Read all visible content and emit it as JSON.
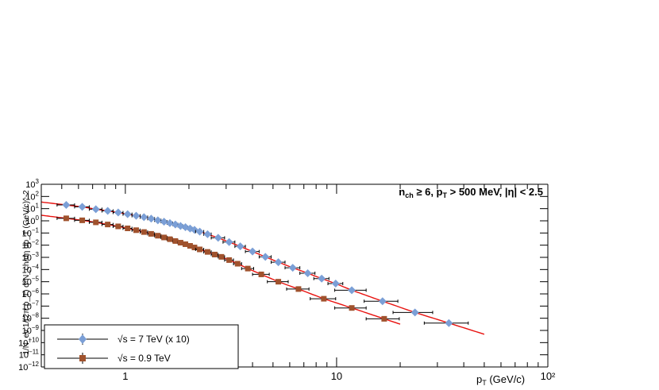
{
  "chart_data": {
    "type": "scatter",
    "title": "",
    "annotation_main": "n",
    "annotation_sub": "ch",
    "annotation_rest1": " ≥ 6, p",
    "annotation_sub2": "T",
    "annotation_rest2": " > 500 MeV, |η| < 2.5",
    "xlabel_main": "p",
    "xlabel_sub": "T",
    "xlabel_rest": "  (GeV/c)",
    "ylabel": "1/N_ev 1/(2π p_T) d²N_ch/dη dp_T (GeV/c)^-2",
    "x_scale": "log",
    "y_scale": "log",
    "xlim": [
      0.4,
      100
    ],
    "ylim": [
      1e-12,
      1000
    ],
    "x_tick_labels": [
      {
        "value": 1,
        "label": "1"
      },
      {
        "value": 10,
        "label": "10"
      },
      {
        "value": 100,
        "label": "10²"
      }
    ],
    "y_tick_exponents": [
      3,
      2,
      1,
      0,
      -1,
      -2,
      -3,
      -4,
      -5,
      -6,
      -7,
      -8,
      -9,
      -10,
      -11,
      -12
    ],
    "y_tick_base": "10",
    "legend_position": "bottom-left",
    "fit_color": "#e8120f",
    "series": [
      {
        "name": "√s = 7 TeV (x 10)",
        "marker": "diamond",
        "color": "#7b9fd6",
        "x": [
          0.525,
          0.625,
          0.725,
          0.825,
          0.925,
          1.025,
          1.125,
          1.225,
          1.325,
          1.425,
          1.525,
          1.625,
          1.725,
          1.825,
          1.925,
          2.025,
          2.125,
          2.25,
          2.45,
          2.75,
          3.1,
          3.5,
          4.0,
          4.6,
          5.3,
          6.2,
          7.3,
          8.5,
          9.9,
          11.8,
          16.5,
          23.5,
          34.0
        ],
        "y": [
          20,
          14,
          9,
          6.5,
          4.8,
          3.5,
          2.6,
          2.0,
          1.5,
          1.1,
          0.85,
          0.65,
          0.5,
          0.38,
          0.3,
          0.23,
          0.18,
          0.13,
          0.08,
          0.04,
          0.018,
          0.008,
          0.003,
          0.0011,
          0.0004,
          0.00014,
          5e-05,
          1.8e-05,
          7e-06,
          2e-06,
          2.5e-07,
          3e-08,
          4e-09
        ],
        "xerr": [
          0.05,
          0.05,
          0.05,
          0.05,
          0.05,
          0.05,
          0.05,
          0.05,
          0.05,
          0.05,
          0.05,
          0.05,
          0.05,
          0.05,
          0.05,
          0.05,
          0.05,
          0.1,
          0.1,
          0.2,
          0.2,
          0.2,
          0.3,
          0.3,
          0.4,
          0.5,
          0.6,
          0.7,
          0.8,
          2.0,
          3.0,
          5.0,
          8.0
        ]
      },
      {
        "name": "√s = 0.9 TeV",
        "marker": "square",
        "color": "#a0522d",
        "x": [
          0.525,
          0.625,
          0.725,
          0.825,
          0.925,
          1.025,
          1.125,
          1.225,
          1.325,
          1.425,
          1.525,
          1.625,
          1.725,
          1.825,
          1.925,
          2.025,
          2.125,
          2.25,
          2.45,
          2.65,
          2.85,
          3.1,
          3.4,
          3.8,
          4.4,
          5.3,
          6.6,
          8.7,
          11.8,
          16.8
        ],
        "y": [
          1.6,
          1.1,
          0.75,
          0.5,
          0.35,
          0.24,
          0.17,
          0.12,
          0.085,
          0.06,
          0.043,
          0.031,
          0.022,
          0.016,
          0.012,
          0.0088,
          0.0065,
          0.0045,
          0.0028,
          0.0017,
          0.0011,
          0.0006,
          0.0003,
          0.00012,
          4e-05,
          1e-05,
          2.5e-06,
          4e-07,
          7e-08,
          9e-09
        ],
        "xerr": [
          0.05,
          0.05,
          0.05,
          0.05,
          0.05,
          0.05,
          0.05,
          0.05,
          0.05,
          0.05,
          0.05,
          0.05,
          0.05,
          0.05,
          0.05,
          0.05,
          0.05,
          0.1,
          0.1,
          0.1,
          0.1,
          0.15,
          0.15,
          0.25,
          0.4,
          0.6,
          0.8,
          1.2,
          2.0,
          3.0
        ]
      }
    ],
    "fits": [
      {
        "series": "√s = 7 TeV (x 10)",
        "x_range": [
          0.4,
          50
        ]
      },
      {
        "series": "√s = 0.9 TeV",
        "x_range": [
          0.4,
          20
        ]
      }
    ]
  }
}
